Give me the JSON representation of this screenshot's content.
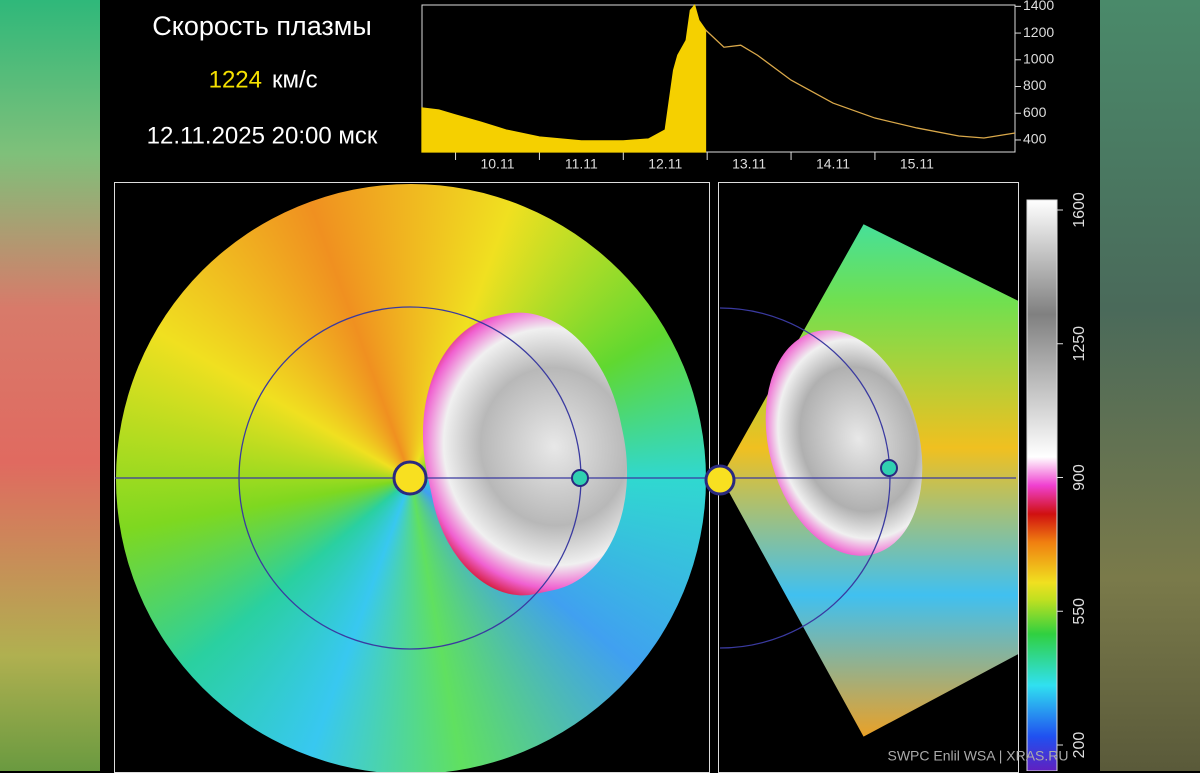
{
  "header": {
    "title": "Скорость плазмы",
    "speed": 1224,
    "unit": "км/с",
    "time": "12.11.2025 20:00 мск"
  },
  "chart_data": {
    "type": "line",
    "xlim": [
      9.6,
      16.67
    ],
    "ylim": [
      310,
      1410
    ],
    "xticks": [
      {
        "value": 10,
        "label": "10.11"
      },
      {
        "value": 11,
        "label": "11.11"
      },
      {
        "value": 12,
        "label": "12.11"
      },
      {
        "value": 13,
        "label": "13.11"
      },
      {
        "value": 14,
        "label": "14.11"
      },
      {
        "value": 15,
        "label": "15.11"
      }
    ],
    "yticks": [
      400,
      600,
      800,
      1000,
      1200,
      1400
    ],
    "series": [
      {
        "color": "#f5d000",
        "fill": true,
        "x": [
          9.6,
          9.8,
          10.0,
          10.3,
          10.6,
          11.0,
          11.5,
          12.0,
          12.3,
          12.5,
          12.55,
          12.6,
          12.65,
          12.75,
          12.8,
          12.85,
          12.9,
          12.98
        ],
        "values": [
          639,
          624,
          587,
          534,
          475,
          422,
          393,
          393,
          407,
          475,
          699,
          922,
          1034,
          1146,
          1370,
          1407,
          1296,
          1224
        ]
      },
      {
        "color": "#d9a84a",
        "fill": false,
        "x": [
          12.98,
          13.2,
          13.4,
          13.6,
          14.0,
          14.5,
          15.0,
          15.5,
          16.0,
          16.3,
          16.67
        ],
        "values": [
          1224,
          1094,
          1109,
          1034,
          848,
          676,
          564,
          490,
          430,
          415,
          452
        ]
      }
    ]
  },
  "colorbar": {
    "lim": [
      200,
      1600
    ],
    "ticks": [
      200,
      550,
      900,
      1250,
      1600
    ]
  },
  "credit": "SWPC Enlil WSA  |  XRAS.RU"
}
